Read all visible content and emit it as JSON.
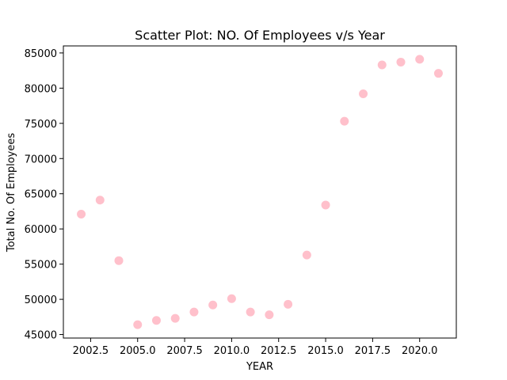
{
  "chart_data": {
    "type": "scatter",
    "title": "Scatter Plot: NO. Of Employees v/s Year",
    "xlabel": "YEAR",
    "ylabel": "Total No. Of Employees",
    "xlim": [
      2001.05,
      2021.95
    ],
    "ylim": [
      44500,
      86000
    ],
    "xticks": [
      2002.5,
      2005.0,
      2007.5,
      2010.0,
      2012.5,
      2015.0,
      2017.5,
      2020.0
    ],
    "xtick_labels": [
      "2002.5",
      "2005.0",
      "2007.5",
      "2010.0",
      "2012.5",
      "2015.0",
      "2017.5",
      "2020.0"
    ],
    "yticks": [
      45000,
      50000,
      55000,
      60000,
      65000,
      70000,
      75000,
      80000,
      85000
    ],
    "ytick_labels": [
      "45000",
      "50000",
      "55000",
      "60000",
      "65000",
      "70000",
      "75000",
      "80000",
      "85000"
    ],
    "grid": false,
    "marker_color": "#ffc0cb",
    "points": [
      {
        "x": 2002,
        "y": 62100
      },
      {
        "x": 2003,
        "y": 64100
      },
      {
        "x": 2004,
        "y": 55500
      },
      {
        "x": 2005,
        "y": 46400
      },
      {
        "x": 2006,
        "y": 47000
      },
      {
        "x": 2007,
        "y": 47300
      },
      {
        "x": 2008,
        "y": 48200
      },
      {
        "x": 2009,
        "y": 49200
      },
      {
        "x": 2010,
        "y": 50100
      },
      {
        "x": 2011,
        "y": 48200
      },
      {
        "x": 2012,
        "y": 47800
      },
      {
        "x": 2013,
        "y": 49300
      },
      {
        "x": 2014,
        "y": 56300
      },
      {
        "x": 2015,
        "y": 63400
      },
      {
        "x": 2016,
        "y": 75300
      },
      {
        "x": 2017,
        "y": 79200
      },
      {
        "x": 2018,
        "y": 83300
      },
      {
        "x": 2019,
        "y": 83700
      },
      {
        "x": 2020,
        "y": 84100
      },
      {
        "x": 2021,
        "y": 82100
      }
    ]
  }
}
